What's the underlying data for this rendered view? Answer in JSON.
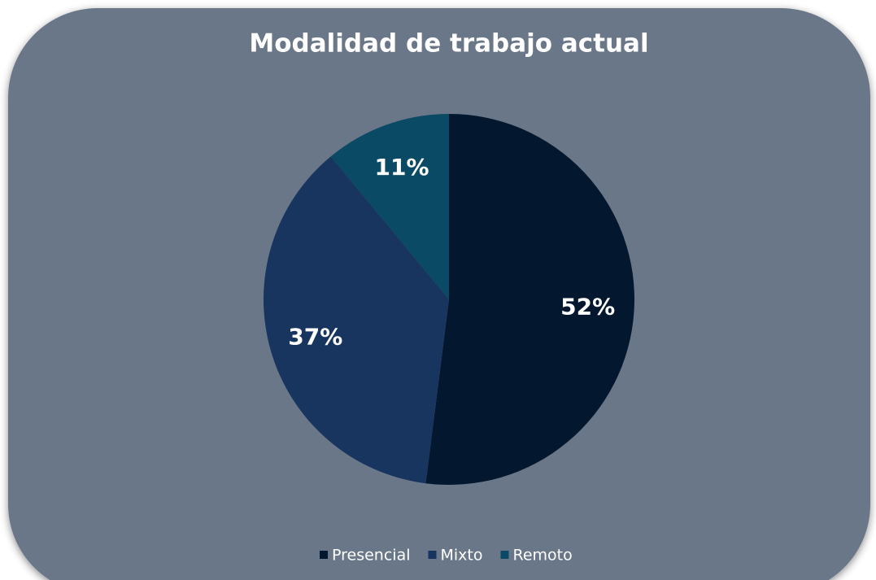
{
  "chart_data": {
    "type": "pie",
    "title": "Modalidad de trabajo actual",
    "categories": [
      "Presencial",
      "Mixto",
      "Remoto"
    ],
    "values": [
      52,
      37,
      11
    ],
    "value_labels": [
      "52%",
      "37%",
      "11%"
    ],
    "colors": [
      "#03182f",
      "#17355e",
      "#0b4a64"
    ],
    "legend": "bottom"
  }
}
